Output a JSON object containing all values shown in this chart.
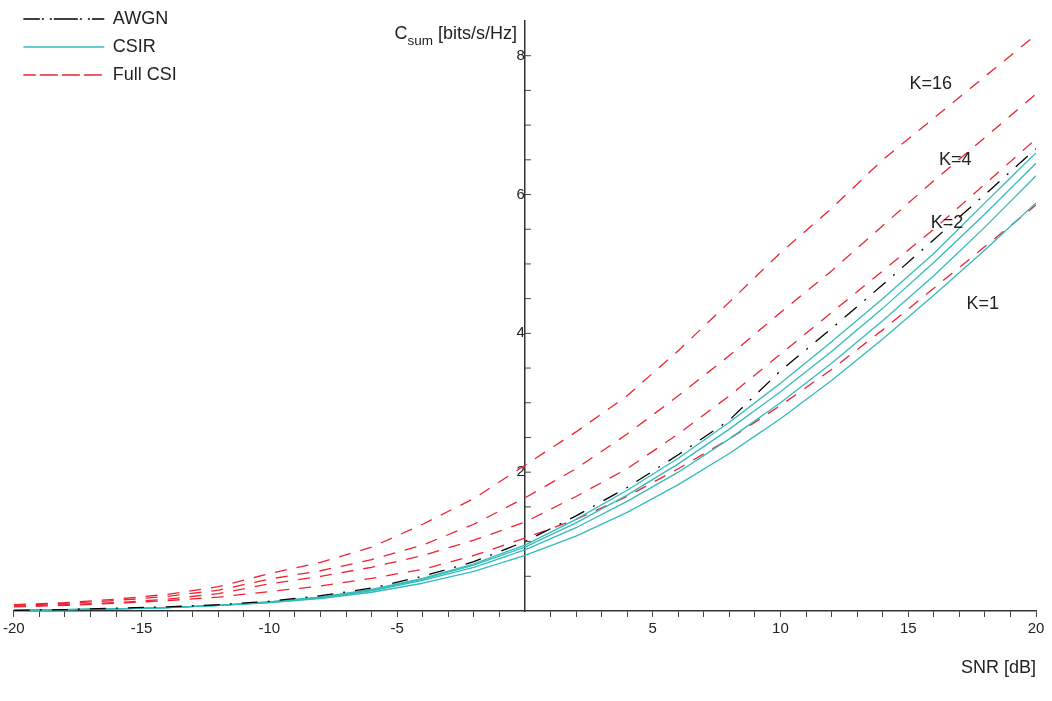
{
  "chart_data": {
    "type": "line",
    "xlabel": "SNR [dB]",
    "ylabel": "C$_{sum}$ [bits/s/Hz]",
    "x": [
      -20,
      -18,
      -16,
      -14,
      -12,
      -10,
      -8,
      -6,
      -4,
      -2,
      0,
      2,
      4,
      6,
      8,
      10,
      12,
      14,
      16,
      18,
      20
    ],
    "xlim": [
      -20,
      20
    ],
    "ylim": [
      0,
      8.5
    ],
    "xticks": [
      -20,
      {
        "value": -19,
        "label": null
      },
      {
        "value": -18,
        "label": null
      },
      {
        "value": -17,
        "label": null
      },
      {
        "value": -16,
        "label": null
      },
      -15,
      {
        "value": -14,
        "label": null
      },
      {
        "value": -13,
        "label": null
      },
      {
        "value": -12,
        "label": null
      },
      {
        "value": -11,
        "label": null
      },
      -10,
      {
        "value": -9,
        "label": null
      },
      {
        "value": -8,
        "label": null
      },
      {
        "value": -7,
        "label": null
      },
      {
        "value": -6,
        "label": null
      },
      -5,
      {
        "value": -4,
        "label": null
      },
      {
        "value": -3,
        "label": null
      },
      {
        "value": -2,
        "label": null
      },
      {
        "value": -1,
        "label": null
      },
      {
        "value": 1,
        "label": null
      },
      {
        "value": 2,
        "label": null
      },
      {
        "value": 3,
        "label": null
      },
      {
        "value": 4,
        "label": null
      },
      5,
      {
        "value": 6,
        "label": null
      },
      {
        "value": 7,
        "label": null
      },
      {
        "value": 8,
        "label": null
      },
      {
        "value": 9,
        "label": null
      },
      10,
      {
        "value": 11,
        "label": null
      },
      {
        "value": 12,
        "label": null
      },
      {
        "value": 13,
        "label": null
      },
      {
        "value": 14,
        "label": null
      },
      15,
      {
        "value": 16,
        "label": null
      },
      {
        "value": 17,
        "label": null
      },
      {
        "value": 18,
        "label": null
      },
      {
        "value": 19,
        "label": null
      },
      20
    ],
    "yticks": [
      {
        "value": 0.5,
        "label": null
      },
      {
        "value": 1,
        "label": null
      },
      {
        "value": 1.5,
        "label": null
      },
      2,
      {
        "value": 2.5,
        "label": null
      },
      {
        "value": 3,
        "label": null
      },
      {
        "value": 3.5,
        "label": null
      },
      4,
      {
        "value": 4.5,
        "label": null
      },
      {
        "value": 5,
        "label": null
      },
      {
        "value": 5.5,
        "label": null
      },
      6,
      {
        "value": 6.5,
        "label": null
      },
      {
        "value": 7,
        "label": null
      },
      {
        "value": 7.5,
        "label": null
      },
      8
    ],
    "legend": "top left",
    "marker": "none",
    "annotations": [
      "K=16",
      "K=4",
      "K=2",
      "K=1"
    ],
    "series": [
      {
        "name": "AWGN",
        "color": "#000000",
        "line_style": "dashdot",
        "values": [
          0.01,
          0.02,
          0.04,
          0.06,
          0.09,
          0.14,
          0.22,
          0.33,
          0.5,
          0.71,
          1.0,
          1.37,
          1.78,
          2.25,
          2.75,
          3.46,
          4.07,
          4.7,
          5.35,
          6.0,
          6.66
        ]
      },
      {
        "name": "CSIR",
        "color": "#33bbbb",
        "line_style": "solid",
        "values": [
          0.01,
          0.02,
          0.03,
          0.05,
          0.08,
          0.13,
          0.2,
          0.31,
          0.47,
          0.68,
          0.95,
          1.32,
          1.74,
          2.2,
          2.72,
          3.28,
          3.88,
          4.5,
          5.15,
          5.88,
          6.6
        ]
      },
      {
        "color": "#33bbbb",
        "line_style": "solid",
        "values": [
          0.01,
          0.02,
          0.03,
          0.05,
          0.08,
          0.13,
          0.2,
          0.3,
          0.46,
          0.66,
          0.92,
          1.27,
          1.67,
          2.12,
          2.62,
          3.16,
          3.74,
          4.36,
          5.02,
          5.72,
          6.45
        ]
      },
      {
        "color": "#33bbbb",
        "line_style": "solid",
        "values": [
          0.01,
          0.02,
          0.03,
          0.05,
          0.08,
          0.12,
          0.19,
          0.29,
          0.44,
          0.63,
          0.88,
          1.2,
          1.58,
          2.0,
          2.48,
          3.0,
          3.57,
          4.18,
          4.83,
          5.53,
          6.27
        ]
      },
      {
        "color": "#33bbbb",
        "line_style": "solid",
        "values": [
          0.01,
          0.02,
          0.03,
          0.05,
          0.08,
          0.12,
          0.18,
          0.27,
          0.4,
          0.57,
          0.8,
          1.08,
          1.42,
          1.82,
          2.27,
          2.77,
          3.32,
          3.92,
          4.55,
          5.2,
          5.88
        ]
      },
      {
        "name": "Full CSI",
        "color": "#ee2233",
        "line_style": "dashed",
        "values": [
          0.09,
          0.12,
          0.17,
          0.24,
          0.35,
          0.54,
          0.7,
          0.92,
          1.25,
          1.62,
          2.1,
          2.58,
          3.1,
          3.75,
          4.45,
          5.16,
          5.8,
          6.5,
          7.1,
          7.7,
          8.3
        ]
      },
      {
        "color": "#ee2233",
        "line_style": "dashed",
        "values": [
          0.08,
          0.11,
          0.15,
          0.21,
          0.3,
          0.46,
          0.58,
          0.74,
          0.95,
          1.25,
          1.63,
          2.05,
          2.55,
          3.1,
          3.68,
          4.3,
          4.9,
          5.55,
          6.2,
          6.82,
          7.45
        ]
      },
      {
        "color": "#ee2233",
        "line_style": "dashed",
        "values": [
          0.07,
          0.09,
          0.12,
          0.17,
          0.25,
          0.39,
          0.5,
          0.63,
          0.8,
          1.02,
          1.28,
          1.65,
          2.05,
          2.55,
          3.1,
          3.7,
          4.3,
          4.9,
          5.5,
          6.15,
          6.8
        ]
      },
      {
        "color": "#ee2233",
        "line_style": "dashed",
        "values": [
          0.06,
          0.08,
          0.11,
          0.15,
          0.2,
          0.28,
          0.36,
          0.47,
          0.6,
          0.8,
          1.05,
          1.32,
          1.65,
          2.05,
          2.48,
          2.96,
          3.48,
          4.05,
          4.65,
          5.25,
          5.85
        ]
      }
    ]
  }
}
